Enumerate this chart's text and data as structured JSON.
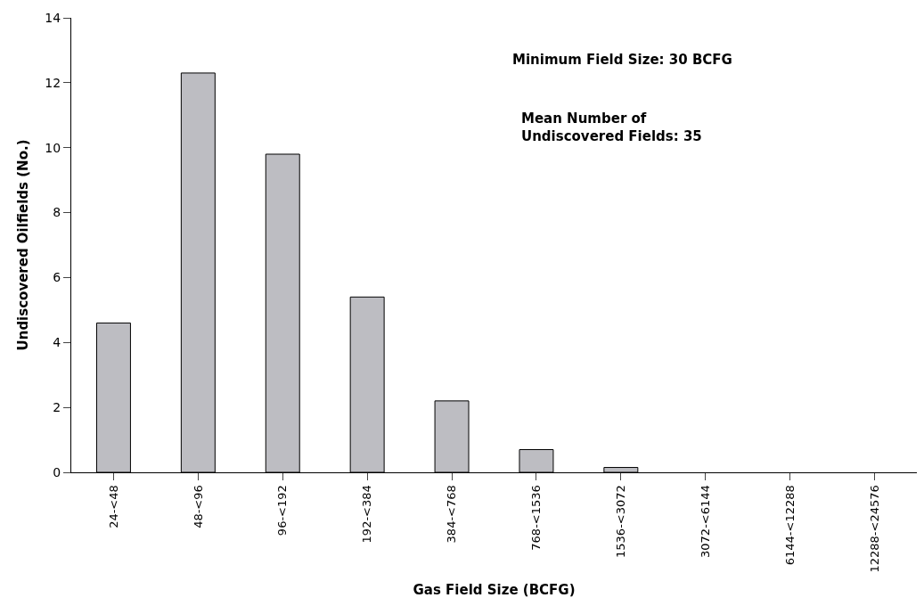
{
  "chart_data": {
    "type": "bar",
    "xlabel": "Gas Field Size (BCFG)",
    "ylabel": "Undiscovered Oilfields (No.)",
    "categories": [
      "24-<48",
      "48-<96",
      "96-<192",
      "192-<384",
      "384-<768",
      "768-<1536",
      "1536-<3072",
      "3072-<6144",
      "6144-<12288",
      "12288-<24576"
    ],
    "values": [
      4.6,
      12.3,
      9.8,
      5.4,
      2.2,
      0.7,
      0.15,
      0,
      0,
      0
    ],
    "color": "#bdbdc2",
    "ylim": [
      0,
      14
    ],
    "yticks": [
      0,
      2,
      4,
      6,
      8,
      10,
      12,
      14
    ],
    "annotations": [
      "Minimum Field Size: 30 BCFG",
      "Mean Number of\nUndiscovered Fields: 35"
    ]
  }
}
